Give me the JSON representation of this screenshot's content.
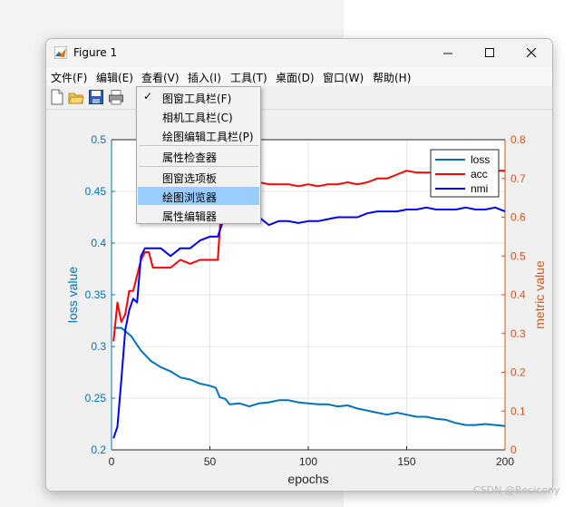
{
  "window": {
    "title": "Figure 1"
  },
  "menus": [
    "文件(F)",
    "编辑(E)",
    "查看(V)",
    "插入(I)",
    "工具(T)",
    "桌面(D)",
    "窗口(W)",
    "帮助(H)"
  ],
  "dropdown": {
    "items": [
      {
        "label": "图窗工具栏(F)",
        "checked": true
      },
      {
        "label": "相机工具栏(C)"
      },
      {
        "label": "绘图编辑工具栏(P)"
      },
      {
        "label": "属性检查器"
      },
      {
        "label": "图窗选项板"
      },
      {
        "label": "绘图浏览器",
        "highlighted": true
      },
      {
        "label": "属性编辑器"
      }
    ]
  },
  "toolbar": {
    "icons": [
      "new-file-icon",
      "open-folder-icon",
      "save-icon",
      "print-icon"
    ]
  },
  "watermark": "CSDN @Becicony",
  "chart_data": {
    "type": "line",
    "xlabel": "epochs",
    "ylabel_left": "loss value",
    "ylabel_right": "metric value",
    "xlim": [
      0,
      200
    ],
    "xticks": [
      "0",
      "50",
      "100",
      "150",
      "200"
    ],
    "ylim_left": [
      0.2,
      0.5
    ],
    "yticks_left": [
      "0.2",
      "0.25",
      "0.3",
      "0.35",
      "0.4",
      "0.45",
      "0.5"
    ],
    "ylim_right": [
      0,
      0.8
    ],
    "yticks_right": [
      "0",
      "0.1",
      "0.2",
      "0.3",
      "0.4",
      "0.5",
      "0.6",
      "0.7",
      "0.8"
    ],
    "grid": true,
    "legend_position": "top-right",
    "colors": {
      "left_axis": "#0072bd",
      "right_axis": "#d95319"
    },
    "series": [
      {
        "name": "loss",
        "axis": "left",
        "color": "#0072bd",
        "x": [
          1,
          5,
          10,
          15,
          20,
          25,
          30,
          35,
          40,
          45,
          50,
          53,
          55,
          58,
          60,
          65,
          70,
          75,
          80,
          85,
          90,
          95,
          100,
          105,
          110,
          115,
          120,
          125,
          130,
          135,
          140,
          145,
          150,
          155,
          160,
          165,
          170,
          175,
          180,
          185,
          190,
          195,
          200
        ],
        "y": [
          0.318,
          0.318,
          0.31,
          0.296,
          0.286,
          0.28,
          0.276,
          0.27,
          0.268,
          0.264,
          0.262,
          0.26,
          0.251,
          0.249,
          0.244,
          0.245,
          0.242,
          0.245,
          0.246,
          0.248,
          0.248,
          0.246,
          0.245,
          0.244,
          0.244,
          0.242,
          0.243,
          0.24,
          0.238,
          0.236,
          0.234,
          0.236,
          0.234,
          0.232,
          0.232,
          0.23,
          0.229,
          0.226,
          0.224,
          0.224,
          0.225,
          0.224,
          0.223
        ]
      },
      {
        "name": "acc",
        "axis": "right",
        "color": "#ff0000",
        "x": [
          1,
          3,
          5,
          7,
          9,
          11,
          13,
          15,
          17,
          19,
          21,
          25,
          30,
          35,
          40,
          45,
          50,
          54,
          56,
          58,
          60,
          65,
          70,
          75,
          80,
          85,
          90,
          95,
          100,
          105,
          110,
          115,
          120,
          125,
          130,
          135,
          140,
          145,
          150,
          155,
          160,
          165,
          170,
          175,
          180,
          185,
          190,
          195,
          200
        ],
        "y": [
          0.28,
          0.38,
          0.33,
          0.35,
          0.41,
          0.41,
          0.45,
          0.49,
          0.51,
          0.51,
          0.47,
          0.47,
          0.47,
          0.49,
          0.48,
          0.49,
          0.49,
          0.49,
          0.64,
          0.66,
          0.68,
          0.67,
          0.68,
          0.69,
          0.685,
          0.685,
          0.685,
          0.68,
          0.685,
          0.68,
          0.685,
          0.685,
          0.69,
          0.685,
          0.69,
          0.7,
          0.7,
          0.71,
          0.72,
          0.715,
          0.715,
          0.715,
          0.72,
          0.715,
          0.72,
          0.72,
          0.715,
          0.72,
          0.72
        ]
      },
      {
        "name": "nmi",
        "axis": "right",
        "color": "#0000ff",
        "x": [
          1,
          3,
          5,
          7,
          9,
          11,
          13,
          15,
          17,
          19,
          21,
          25,
          30,
          35,
          40,
          45,
          50,
          54,
          56,
          58,
          60,
          65,
          70,
          75,
          80,
          85,
          90,
          95,
          100,
          105,
          110,
          115,
          120,
          125,
          130,
          135,
          140,
          145,
          150,
          155,
          160,
          165,
          170,
          175,
          180,
          185,
          190,
          195,
          200
        ],
        "y": [
          0.03,
          0.06,
          0.18,
          0.31,
          0.36,
          0.39,
          0.38,
          0.5,
          0.52,
          0.52,
          0.52,
          0.52,
          0.5,
          0.52,
          0.52,
          0.54,
          0.55,
          0.55,
          0.58,
          0.62,
          0.6,
          0.6,
          0.59,
          0.6,
          0.58,
          0.59,
          0.59,
          0.585,
          0.59,
          0.59,
          0.595,
          0.6,
          0.6,
          0.6,
          0.61,
          0.615,
          0.615,
          0.615,
          0.62,
          0.62,
          0.625,
          0.62,
          0.62,
          0.62,
          0.625,
          0.62,
          0.62,
          0.625,
          0.615
        ]
      }
    ]
  }
}
